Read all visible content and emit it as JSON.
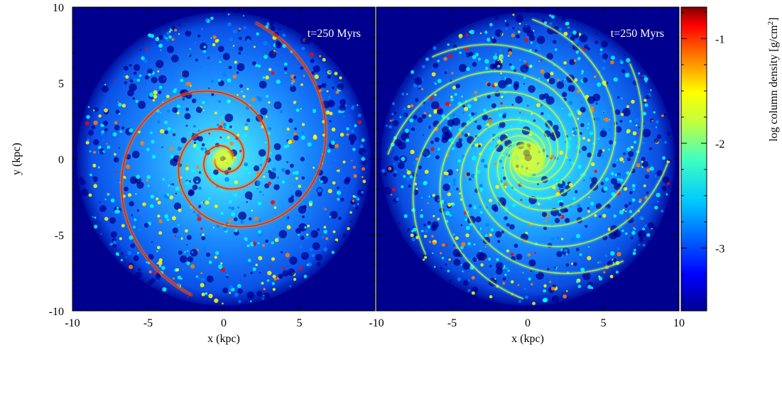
{
  "chart_data": [
    {
      "type": "heatmap",
      "panel": "left",
      "annotation": "t=250 Myrs",
      "xlabel": "x (kpc)",
      "ylabel": "y (kpc)",
      "xlim": [
        -10,
        10
      ],
      "ylim": [
        -10,
        10
      ],
      "x_ticks": [
        -10,
        -5,
        0,
        5,
        10
      ],
      "y_ticks": [
        -10,
        -5,
        0,
        5,
        10
      ],
      "x_tick_labels": [
        "-10",
        "-5",
        "0",
        "5",
        ""
      ],
      "y_tick_labels": [
        "-10",
        "-5",
        "0",
        "5",
        "10"
      ],
      "morphology": "grand-design two-armed spiral, disk radius ~9.8 kpc",
      "arms": 2,
      "colorscale": "jet",
      "colorbar": {
        "label": "log column density [g/cm",
        "label_superscript": "2",
        "label_close": "]",
        "range": [
          -3.6,
          -0.7
        ],
        "ticks": [
          -1,
          -2,
          -3
        ],
        "tick_labels": [
          "-1",
          "-2",
          "-3"
        ]
      }
    },
    {
      "type": "heatmap",
      "panel": "right",
      "annotation": "t=250 Myrs",
      "xlabel": "x (kpc)",
      "ylabel": "",
      "xlim": [
        -10,
        10
      ],
      "ylim": [
        -10,
        10
      ],
      "x_ticks": [
        -10,
        -5,
        0,
        5,
        10
      ],
      "x_tick_labels": [
        "-10",
        "-5",
        "0",
        "5",
        "10"
      ],
      "morphology": "flocculent multi-armed spiral, disk radius ~9.8 kpc",
      "arms": 8,
      "colorscale": "jet"
    }
  ],
  "colors": {
    "background_field": "#00008f",
    "colormap_stops": [
      "#00008f",
      "#0000ff",
      "#007fff",
      "#00ffff",
      "#7fff7f",
      "#ffff00",
      "#ff7f00",
      "#ff0000",
      "#7f0000"
    ]
  }
}
